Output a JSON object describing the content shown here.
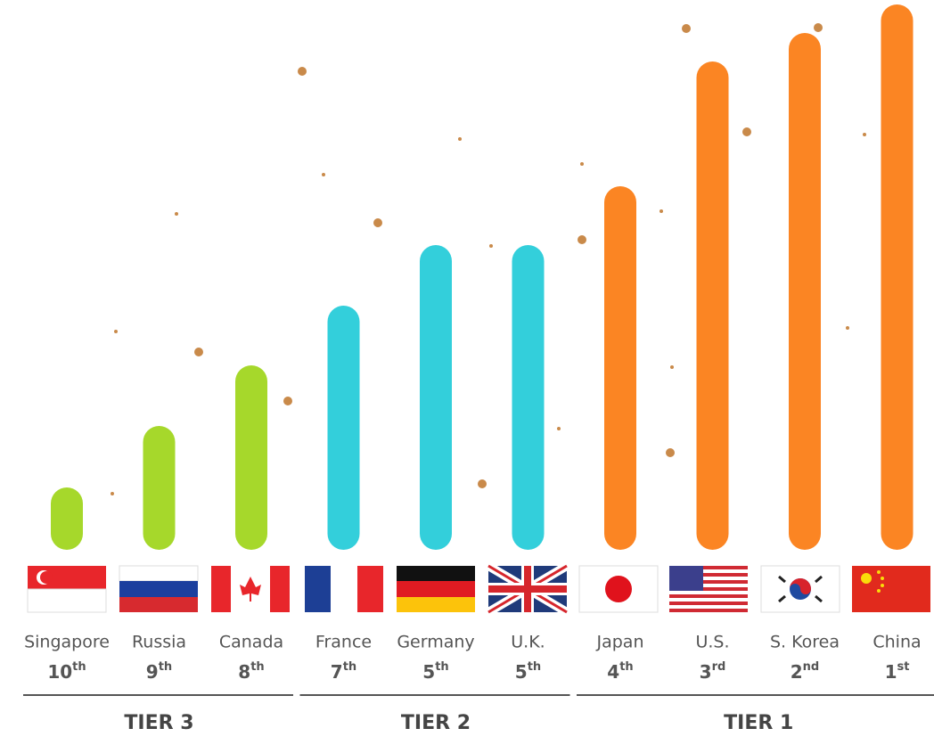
{
  "chart_data": {
    "type": "bar",
    "categories": [
      "Singapore",
      "Russia",
      "Canada",
      "France",
      "Germany",
      "U.K.",
      "Japan",
      "U.S.",
      "S. Korea",
      "China"
    ],
    "ranks": [
      10,
      9,
      8,
      7,
      5,
      5,
      4,
      3,
      2,
      1
    ],
    "rank_suffixes": [
      "th",
      "th",
      "th",
      "th",
      "th",
      "th",
      "th",
      "rd",
      "nd",
      "st"
    ],
    "series": [
      {
        "name": "TIER 3",
        "color": "#a6d82b",
        "values": [
          70,
          139,
          207,
          null,
          null,
          null,
          null,
          null,
          null,
          null
        ]
      },
      {
        "name": "TIER 2",
        "color": "#33cfdb",
        "values": [
          null,
          null,
          null,
          274,
          342,
          342,
          null,
          null,
          null,
          null
        ]
      },
      {
        "name": "TIER 1",
        "color": "#fb8523",
        "values": [
          null,
          null,
          null,
          null,
          null,
          null,
          408,
          548,
          580,
          612
        ]
      }
    ],
    "ylim": [
      0,
      612
    ]
  }
}
